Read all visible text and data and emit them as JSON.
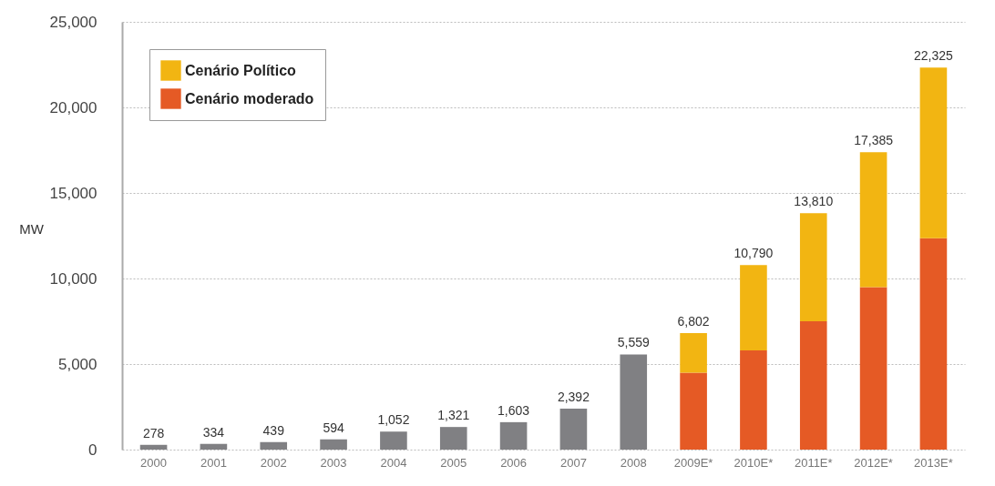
{
  "chart_data": {
    "type": "bar",
    "stacked": true,
    "ylabel": "MW",
    "categories": [
      "2000",
      "2001",
      "2002",
      "2003",
      "2004",
      "2005",
      "2006",
      "2007",
      "2008",
      "2009E*",
      "2010E*",
      "2011E*",
      "2012E*",
      "2013E*"
    ],
    "series": [
      {
        "color": "#808083",
        "values": [
          278,
          334,
          439,
          594,
          1052,
          1321,
          1603,
          2392,
          5559,
          null,
          null,
          null,
          null,
          null
        ]
      },
      {
        "name": "Cenário moderado",
        "color": "#e55a25",
        "values": [
          null,
          null,
          null,
          null,
          null,
          null,
          null,
          null,
          null,
          4500,
          5800,
          7500,
          9500,
          12350
        ]
      },
      {
        "name": "Cenário Político",
        "color": "#f2b512",
        "values": [
          null,
          null,
          null,
          null,
          null,
          null,
          null,
          null,
          null,
          2302,
          4990,
          6310,
          7885,
          9975
        ]
      }
    ],
    "totals": [
      "278",
      "334",
      "439",
      "594",
      "1,052",
      "1,321",
      "1,603",
      "2,392",
      "5,559",
      "6,802",
      "10,790",
      "13,810",
      "17,385",
      "22,325"
    ],
    "ylim": [
      0,
      25000
    ],
    "yticks": [
      0,
      {
        "value": 5000,
        "label": "5,000"
      },
      {
        "value": 10000,
        "label": "10,000"
      },
      {
        "value": 15000,
        "label": "15,000"
      },
      {
        "value": 20000,
        "label": "20,000"
      },
      {
        "value": 25000,
        "label": "25,000"
      }
    ],
    "grid": "y",
    "legend": "top left"
  }
}
